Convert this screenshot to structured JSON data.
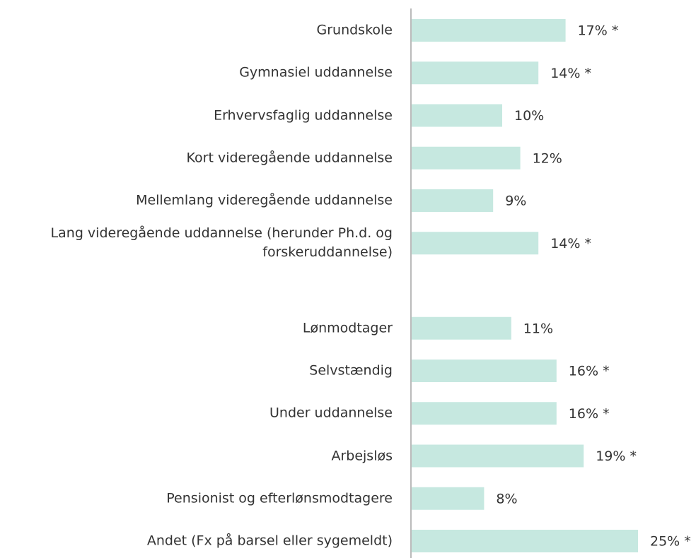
{
  "chart_data": {
    "type": "bar",
    "orientation": "horizontal",
    "color": "#c6e8e0",
    "categories": [
      "Grundskole",
      "Gymnasiel uddannelse",
      "Erhvervsfaglig uddannelse",
      "Kort videregående uddannelse",
      "Mellemlang videregående uddannelse",
      "Lang videregående uddannelse (herunder Ph.d. og forskeruddannelse)",
      null,
      "Lønmodtager",
      "Selvstændig",
      "Under uddannelse",
      "Arbejsløs",
      "Pensionist og efterlønsmodtagere",
      "Andet (Fx på barsel eller sygemeldt)"
    ],
    "values": [
      17,
      14,
      10,
      12,
      9,
      14,
      null,
      11,
      16,
      16,
      19,
      8,
      25
    ],
    "value_labels": [
      "17% *",
      "14% *",
      "10%",
      "12%",
      "9%",
      "14% *",
      null,
      "11%",
      "16% *",
      "16% *",
      "19% *",
      "8%",
      "25% *"
    ]
  }
}
